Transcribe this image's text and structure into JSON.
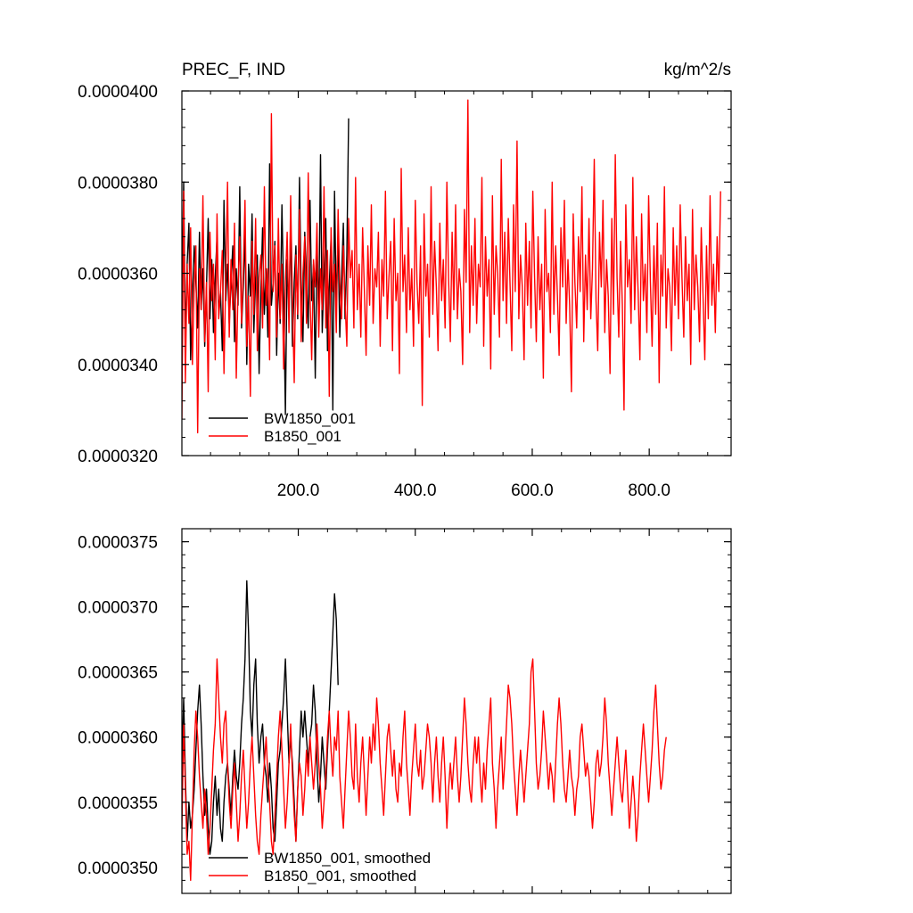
{
  "chart_data": [
    {
      "type": "line",
      "title_left": "PREC_F, IND",
      "title_right": "kg/m^2/s",
      "xlim": [
        1,
        940
      ],
      "ylim": [
        3.2e-05,
        4e-05
      ],
      "xticks": [
        200,
        400,
        600,
        800
      ],
      "xtick_labels": [
        "200.0",
        "400.0",
        "600.0",
        "800.0"
      ],
      "yticks": [
        3.2e-05,
        3.4e-05,
        3.6e-05,
        3.8e-05,
        4e-05
      ],
      "ytick_labels": [
        "0.0000320",
        "0.0000340",
        "0.0000360",
        "0.0000380",
        "0.0000400"
      ],
      "legend_position": "bottom-left",
      "series": [
        {
          "name": "BW1850_001",
          "color": "#000000",
          "x_start": 1,
          "x_step": 3,
          "values": [
            3.5e-05,
            3.8e-05,
            3.45e-05,
            3.62e-05,
            3.71e-05,
            3.41e-05,
            3.55e-05,
            3.66e-05,
            3.58e-05,
            3.48e-05,
            3.69e-05,
            3.52e-05,
            3.61e-05,
            3.44e-05,
            3.57e-05,
            3.72e-05,
            3.5e-05,
            3.63e-05,
            3.47e-05,
            3.59e-05,
            3.68e-05,
            3.51e-05,
            3.56e-05,
            3.43e-05,
            3.76e-05,
            3.54e-05,
            3.62e-05,
            3.49e-05,
            3.58e-05,
            3.66e-05,
            3.45e-05,
            3.61e-05,
            3.53e-05,
            3.79e-05,
            3.48e-05,
            3.57e-05,
            3.69e-05,
            3.4e-05,
            3.62e-05,
            3.55e-05,
            3.73e-05,
            3.47e-05,
            3.59e-05,
            3.64e-05,
            3.38e-05,
            3.56e-05,
            3.7e-05,
            3.51e-05,
            3.61e-05,
            3.46e-05,
            3.84e-05,
            3.53e-05,
            3.58e-05,
            3.67e-05,
            3.42e-05,
            3.6e-05,
            3.49e-05,
            3.75e-05,
            3.55e-05,
            3.29e-05,
            3.63e-05,
            3.52e-05,
            3.71e-05,
            3.44e-05,
            3.58e-05,
            3.66e-05,
            3.5e-05,
            3.81e-05,
            3.56e-05,
            3.45e-05,
            3.69e-05,
            3.59e-05,
            3.48e-05,
            3.76e-05,
            3.54e-05,
            3.62e-05,
            3.37e-05,
            3.65e-05,
            3.51e-05,
            3.86e-05,
            3.47e-05,
            3.6e-05,
            3.72e-05,
            3.43e-05,
            3.57e-05,
            3.68e-05,
            3.3e-05,
            3.78e-05,
            3.53e-05,
            3.68e-05,
            3.46e-05,
            3.59e-05,
            3.71e-05,
            3.5e-05,
            3.64e-05,
            3.94e-05
          ]
        },
        {
          "name": "B1850_001",
          "color": "#ff0000",
          "x_start": 1,
          "x_step": 3,
          "values": [
            3.28e-05,
            3.78e-05,
            3.36e-05,
            3.62e-05,
            3.49e-05,
            3.7e-05,
            3.4e-05,
            3.57e-05,
            3.66e-05,
            3.25e-05,
            3.61e-05,
            3.52e-05,
            3.77e-05,
            3.45e-05,
            3.58e-05,
            3.34e-05,
            3.69e-05,
            3.54e-05,
            3.62e-05,
            3.41e-05,
            3.73e-05,
            3.5e-05,
            3.56e-05,
            3.65e-05,
            3.38e-05,
            3.59e-05,
            3.8e-05,
            3.46e-05,
            3.63e-05,
            3.52e-05,
            3.71e-05,
            3.37e-05,
            3.57e-05,
            3.68e-05,
            3.49e-05,
            3.61e-05,
            3.76e-05,
            3.44e-05,
            3.55e-05,
            3.33e-05,
            3.67e-05,
            3.51e-05,
            3.72e-05,
            3.43e-05,
            3.59e-05,
            3.64e-05,
            3.48e-05,
            3.79e-05,
            3.53e-05,
            3.61e-05,
            3.41e-05,
            3.95e-05,
            3.56e-05,
            3.66e-05,
            3.46e-05,
            3.72e-05,
            3.5e-05,
            3.62e-05,
            3.39e-05,
            3.58e-05,
            3.69e-05,
            3.47e-05,
            3.77e-05,
            3.54e-05,
            3.36e-05,
            3.64e-05,
            3.51e-05,
            3.74e-05,
            3.45e-05,
            3.6e-05,
            3.68e-05,
            3.49e-05,
            3.82e-05,
            3.55e-05,
            3.41e-05,
            3.63e-05,
            3.57e-05,
            3.71e-05,
            3.46e-05,
            3.61e-05,
            3.52e-05,
            3.79e-05,
            3.48e-05,
            3.65e-05,
            3.33e-05,
            3.7e-05,
            3.56e-05,
            3.62e-05,
            3.47e-05,
            3.74e-05,
            3.58e-05,
            3.5e-05,
            3.66e-05,
            3.54e-05,
            3.44e-05,
            3.72e-05,
            3.59e-05,
            3.65e-05,
            3.48e-05,
            3.81e-05,
            3.52e-05,
            3.62e-05,
            3.46e-05,
            3.7e-05,
            3.56e-05,
            3.42e-05,
            3.66e-05,
            3.53e-05,
            3.75e-05,
            3.49e-05,
            3.61e-05,
            3.57e-05,
            3.69e-05,
            3.44e-05,
            3.63e-05,
            3.55e-05,
            3.78e-05,
            3.5e-05,
            3.59e-05,
            3.67e-05,
            3.43e-05,
            3.72e-05,
            3.54e-05,
            3.6e-05,
            3.38e-05,
            3.83e-05,
            3.56e-05,
            3.64e-05,
            3.47e-05,
            3.7e-05,
            3.52e-05,
            3.61e-05,
            3.44e-05,
            3.76e-05,
            3.58e-05,
            3.49e-05,
            3.66e-05,
            3.31e-05,
            3.73e-05,
            3.55e-05,
            3.62e-05,
            3.46e-05,
            3.79e-05,
            3.51e-05,
            3.67e-05,
            3.57e-05,
            3.43e-05,
            3.71e-05,
            3.54e-05,
            3.63e-05,
            3.48e-05,
            3.8e-05,
            3.59e-05,
            3.45e-05,
            3.69e-05,
            3.52e-05,
            3.75e-05,
            3.5e-05,
            3.61e-05,
            3.56e-05,
            3.4e-05,
            3.74e-05,
            3.58e-05,
            3.98e-05,
            3.47e-05,
            3.66e-05,
            3.53e-05,
            3.72e-05,
            3.49e-05,
            3.62e-05,
            3.57e-05,
            3.81e-05,
            3.44e-05,
            3.68e-05,
            3.55e-05,
            3.63e-05,
            3.39e-05,
            3.77e-05,
            3.51e-05,
            3.66e-05,
            3.6e-05,
            3.46e-05,
            3.85e-05,
            3.54e-05,
            3.69e-05,
            3.49e-05,
            3.72e-05,
            3.58e-05,
            3.43e-05,
            3.75e-05,
            3.56e-05,
            3.89e-05,
            3.5e-05,
            3.64e-05,
            3.57e-05,
            3.41e-05,
            3.71e-05,
            3.53e-05,
            3.67e-05,
            3.48e-05,
            3.78e-05,
            3.59e-05,
            3.45e-05,
            3.68e-05,
            3.52e-05,
            3.62e-05,
            3.37e-05,
            3.74e-05,
            3.56e-05,
            3.6e-05,
            3.47e-05,
            3.8e-05,
            3.51e-05,
            3.66e-05,
            3.55e-05,
            3.42e-05,
            3.7e-05,
            3.57e-05,
            3.76e-05,
            3.49e-05,
            3.63e-05,
            3.53e-05,
            3.34e-05,
            3.73e-05,
            3.58e-05,
            3.48e-05,
            3.68e-05,
            3.56e-05,
            3.79e-05,
            3.45e-05,
            3.64e-05,
            3.52e-05,
            3.72e-05,
            3.5e-05,
            3.61e-05,
            3.85e-05,
            3.54e-05,
            3.43e-05,
            3.69e-05,
            3.57e-05,
            3.76e-05,
            3.47e-05,
            3.63e-05,
            3.55e-05,
            3.38e-05,
            3.72e-05,
            3.51e-05,
            3.86e-05,
            3.59e-05,
            3.46e-05,
            3.67e-05,
            3.53e-05,
            3.3e-05,
            3.75e-05,
            3.57e-05,
            3.63e-05,
            3.49e-05,
            3.81e-05,
            3.52e-05,
            3.68e-05,
            3.56e-05,
            3.41e-05,
            3.73e-05,
            3.54e-05,
            3.62e-05,
            3.47e-05,
            3.77e-05,
            3.58e-05,
            3.44e-05,
            3.66e-05,
            3.51e-05,
            3.71e-05,
            3.36e-05,
            3.64e-05,
            3.55e-05,
            3.79e-05,
            3.48e-05,
            3.61e-05,
            3.57e-05,
            3.43e-05,
            3.7e-05,
            3.53e-05,
            3.66e-05,
            3.5e-05,
            3.75e-05,
            3.59e-05,
            3.46e-05,
            3.68e-05,
            3.54e-05,
            3.62e-05,
            3.4e-05,
            3.74e-05,
            3.52e-05,
            3.64e-05,
            3.57e-05,
            3.45e-05,
            3.7e-05,
            3.55e-05,
            3.41e-05,
            3.66e-05,
            3.5e-05,
            3.77e-05,
            3.53e-05,
            3.62e-05,
            3.47e-05,
            3.68e-05,
            3.56e-05,
            3.78e-05
          ]
        }
      ]
    },
    {
      "type": "line",
      "xlim": [
        1,
        940
      ],
      "ylim": [
        3.48e-05,
        3.76e-05
      ],
      "yticks": [
        3.5e-05,
        3.55e-05,
        3.6e-05,
        3.65e-05,
        3.7e-05,
        3.75e-05
      ],
      "ytick_labels": [
        "0.0000350",
        "0.0000355",
        "0.0000360",
        "0.0000365",
        "0.0000370",
        "0.0000375"
      ],
      "legend_position": "bottom-left",
      "series": [
        {
          "name": "BW1850_001, smoothed",
          "color": "#000000",
          "x_start": 1,
          "x_step": 3,
          "values": [
            3.58e-05,
            3.63e-05,
            3.57e-05,
            3.52e-05,
            3.55e-05,
            3.53e-05,
            3.54e-05,
            3.56e-05,
            3.59e-05,
            3.62e-05,
            3.64e-05,
            3.61e-05,
            3.57e-05,
            3.54e-05,
            3.56e-05,
            3.53e-05,
            3.51e-05,
            3.52e-05,
            3.55e-05,
            3.57e-05,
            3.54e-05,
            3.56e-05,
            3.53e-05,
            3.52e-05,
            3.55e-05,
            3.57e-05,
            3.58e-05,
            3.56e-05,
            3.54e-05,
            3.57e-05,
            3.59e-05,
            3.57e-05,
            3.56e-05,
            3.58e-05,
            3.61e-05,
            3.63e-05,
            3.66e-05,
            3.72e-05,
            3.68e-05,
            3.62e-05,
            3.6e-05,
            3.64e-05,
            3.66e-05,
            3.61e-05,
            3.58e-05,
            3.6e-05,
            3.61e-05,
            3.58e-05,
            3.57e-05,
            3.55e-05,
            3.58e-05,
            3.56e-05,
            3.53e-05,
            3.52e-05,
            3.55e-05,
            3.58e-05,
            3.59e-05,
            3.61e-05,
            3.63e-05,
            3.66e-05,
            3.62e-05,
            3.58e-05,
            3.6e-05,
            3.58e-05,
            3.55e-05,
            3.52e-05,
            3.56e-05,
            3.59e-05,
            3.62e-05,
            3.6e-05,
            3.62e-05,
            3.6e-05,
            3.58e-05,
            3.6e-05,
            3.61e-05,
            3.64e-05,
            3.62e-05,
            3.58e-05,
            3.55e-05,
            3.57e-05,
            3.6e-05,
            3.58e-05,
            3.56e-05,
            3.59e-05,
            3.62e-05,
            3.65e-05,
            3.68e-05,
            3.71e-05,
            3.69e-05,
            3.64e-05
          ]
        },
        {
          "name": "B1850_001, smoothed",
          "color": "#ff0000",
          "x_start": 1,
          "x_step": 3,
          "values": [
            3.53e-05,
            3.61e-05,
            3.56e-05,
            3.51e-05,
            3.52e-05,
            3.49e-05,
            3.54e-05,
            3.59e-05,
            3.62e-05,
            3.6e-05,
            3.57e-05,
            3.55e-05,
            3.53e-05,
            3.56e-05,
            3.54e-05,
            3.51e-05,
            3.53e-05,
            3.56e-05,
            3.59e-05,
            3.61e-05,
            3.66e-05,
            3.63e-05,
            3.6e-05,
            3.58e-05,
            3.61e-05,
            3.62e-05,
            3.58e-05,
            3.55e-05,
            3.53e-05,
            3.56e-05,
            3.58e-05,
            3.55e-05,
            3.52e-05,
            3.54e-05,
            3.57e-05,
            3.59e-05,
            3.56e-05,
            3.53e-05,
            3.55e-05,
            3.58e-05,
            3.6e-05,
            3.57e-05,
            3.54e-05,
            3.52e-05,
            3.51e-05,
            3.54e-05,
            3.56e-05,
            3.58e-05,
            3.6e-05,
            3.57e-05,
            3.55e-05,
            3.52e-05,
            3.51e-05,
            3.54e-05,
            3.57e-05,
            3.6e-05,
            3.62e-05,
            3.59e-05,
            3.56e-05,
            3.53e-05,
            3.55e-05,
            3.58e-05,
            3.61e-05,
            3.57e-05,
            3.54e-05,
            3.52e-05,
            3.56e-05,
            3.58e-05,
            3.57e-05,
            3.54e-05,
            3.56e-05,
            3.59e-05,
            3.57e-05,
            3.6e-05,
            3.58e-05,
            3.56e-05,
            3.58e-05,
            3.61e-05,
            3.58e-05,
            3.56e-05,
            3.53e-05,
            3.55e-05,
            3.57e-05,
            3.6e-05,
            3.62e-05,
            3.59e-05,
            3.57e-05,
            3.6e-05,
            3.59e-05,
            3.62e-05,
            3.57e-05,
            3.55e-05,
            3.53e-05,
            3.56e-05,
            3.59e-05,
            3.62e-05,
            3.6e-05,
            3.57e-05,
            3.56e-05,
            3.61e-05,
            3.57e-05,
            3.55e-05,
            3.58e-05,
            3.6e-05,
            3.57e-05,
            3.54e-05,
            3.57e-05,
            3.6e-05,
            3.58e-05,
            3.61e-05,
            3.59e-05,
            3.63e-05,
            3.61e-05,
            3.58e-05,
            3.56e-05,
            3.54e-05,
            3.57e-05,
            3.6e-05,
            3.61e-05,
            3.59e-05,
            3.57e-05,
            3.59e-05,
            3.56e-05,
            3.55e-05,
            3.58e-05,
            3.57e-05,
            3.6e-05,
            3.62e-05,
            3.58e-05,
            3.56e-05,
            3.54e-05,
            3.57e-05,
            3.59e-05,
            3.61e-05,
            3.58e-05,
            3.57e-05,
            3.59e-05,
            3.56e-05,
            3.57e-05,
            3.59e-05,
            3.61e-05,
            3.6e-05,
            3.58e-05,
            3.55e-05,
            3.58e-05,
            3.6e-05,
            3.57e-05,
            3.55e-05,
            3.58e-05,
            3.6e-05,
            3.57e-05,
            3.53e-05,
            3.56e-05,
            3.58e-05,
            3.56e-05,
            3.58e-05,
            3.6e-05,
            3.57e-05,
            3.55e-05,
            3.57e-05,
            3.6e-05,
            3.63e-05,
            3.61e-05,
            3.58e-05,
            3.56e-05,
            3.55e-05,
            3.58e-05,
            3.6e-05,
            3.58e-05,
            3.6e-05,
            3.57e-05,
            3.55e-05,
            3.58e-05,
            3.56e-05,
            3.59e-05,
            3.61e-05,
            3.63e-05,
            3.58e-05,
            3.56e-05,
            3.53e-05,
            3.56e-05,
            3.58e-05,
            3.6e-05,
            3.56e-05,
            3.58e-05,
            3.61e-05,
            3.64e-05,
            3.63e-05,
            3.61e-05,
            3.58e-05,
            3.56e-05,
            3.54e-05,
            3.57e-05,
            3.59e-05,
            3.57e-05,
            3.55e-05,
            3.57e-05,
            3.59e-05,
            3.61e-05,
            3.65e-05,
            3.66e-05,
            3.62e-05,
            3.58e-05,
            3.56e-05,
            3.57e-05,
            3.59e-05,
            3.62e-05,
            3.6e-05,
            3.58e-05,
            3.56e-05,
            3.58e-05,
            3.57e-05,
            3.55e-05,
            3.58e-05,
            3.61e-05,
            3.63e-05,
            3.61e-05,
            3.58e-05,
            3.56e-05,
            3.55e-05,
            3.57e-05,
            3.59e-05,
            3.57e-05,
            3.56e-05,
            3.54e-05,
            3.56e-05,
            3.57e-05,
            3.6e-05,
            3.61e-05,
            3.59e-05,
            3.57e-05,
            3.58e-05,
            3.57e-05,
            3.55e-05,
            3.53e-05,
            3.55e-05,
            3.58e-05,
            3.59e-05,
            3.57e-05,
            3.58e-05,
            3.6e-05,
            3.63e-05,
            3.61e-05,
            3.58e-05,
            3.56e-05,
            3.54e-05,
            3.56e-05,
            3.58e-05,
            3.6e-05,
            3.58e-05,
            3.56e-05,
            3.55e-05,
            3.57e-05,
            3.59e-05,
            3.56e-05,
            3.53e-05,
            3.55e-05,
            3.57e-05,
            3.55e-05,
            3.52e-05,
            3.54e-05,
            3.57e-05,
            3.59e-05,
            3.61e-05,
            3.59e-05,
            3.57e-05,
            3.55e-05,
            3.57e-05,
            3.59e-05,
            3.62e-05,
            3.64e-05,
            3.61e-05,
            3.58e-05,
            3.56e-05,
            3.57e-05,
            3.59e-05,
            3.6e-05
          ]
        }
      ]
    }
  ]
}
